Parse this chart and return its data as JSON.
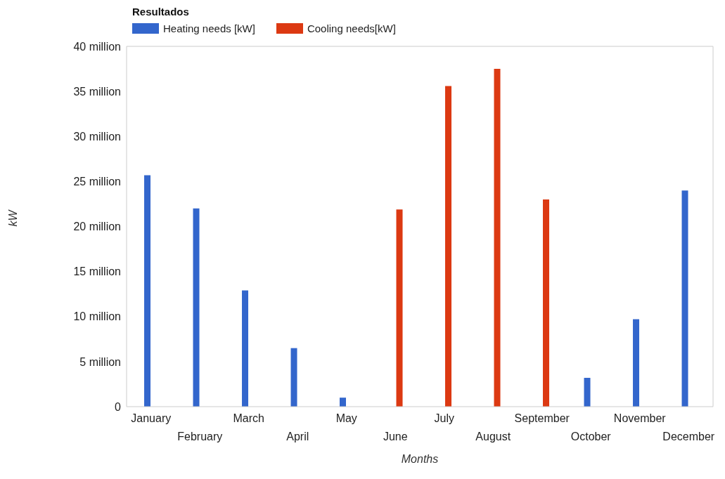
{
  "chart_data": {
    "type": "bar",
    "legend_title": "Resultados",
    "xlabel": "Months",
    "ylabel": "kW",
    "categories": [
      "January",
      "February",
      "March",
      "April",
      "May",
      "June",
      "July",
      "August",
      "September",
      "October",
      "November",
      "December"
    ],
    "series": [
      {
        "name": "Heating needs [kW]",
        "color": "#3366cc",
        "values": [
          25700000,
          22000000,
          12900000,
          6500000,
          1000000,
          0,
          0,
          0,
          0,
          3200000,
          9700000,
          24000000
        ]
      },
      {
        "name": "Cooling needs[kW]",
        "color": "#dc3912",
        "values": [
          0,
          0,
          0,
          0,
          0,
          21900000,
          35600000,
          37500000,
          23000000,
          0,
          0,
          0
        ]
      }
    ],
    "ylim": [
      0,
      40000000
    ],
    "yticks": [
      0,
      {
        "value": 5000000,
        "label": "5 million"
      },
      {
        "value": 10000000,
        "label": "10 million"
      },
      {
        "value": 15000000,
        "label": "15 million"
      },
      {
        "value": 20000000,
        "label": "20 million"
      },
      {
        "value": 25000000,
        "label": "25 million"
      },
      {
        "value": 30000000,
        "label": "30 million"
      },
      {
        "value": 35000000,
        "label": "35 million"
      },
      {
        "value": 40000000,
        "label": "40 million"
      }
    ],
    "grid": false,
    "legend": "top left"
  }
}
